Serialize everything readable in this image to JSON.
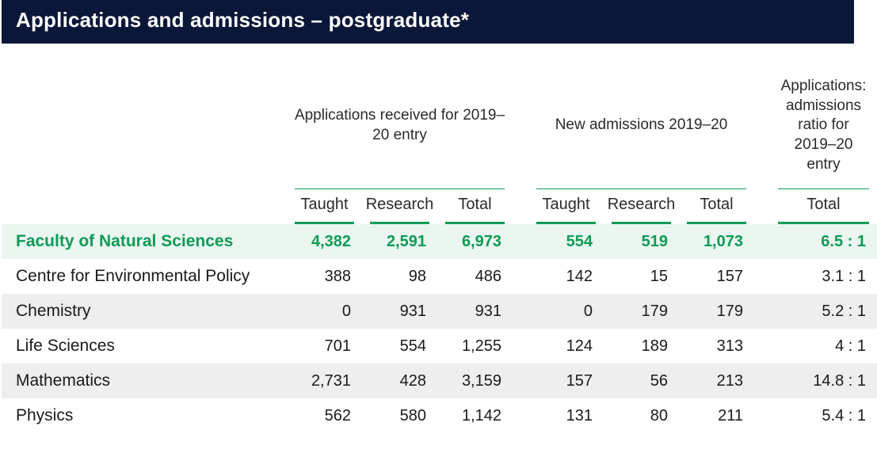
{
  "title": "Applications and admissions – postgraduate*",
  "group_headers": {
    "apps": "Applications received for  2019–20 entry",
    "admissions": "New admissions 2019–20",
    "ratio": "Applications: admissions ratio for 2019–20 entry"
  },
  "sub_headers": {
    "taught": "Taught",
    "research": "Research",
    "total": "Total"
  },
  "rows": [
    {
      "label": "Faculty of Natural Sciences",
      "a_t": "4,382",
      "a_r": "2,591",
      "a_tot": "6,973",
      "n_t": "554",
      "n_r": "519",
      "n_tot": "1,073",
      "ratio": "6.5 : 1",
      "faculty": true
    },
    {
      "label": "Centre for Environmental Policy",
      "a_t": "388",
      "a_r": "98",
      "a_tot": "486",
      "n_t": "142",
      "n_r": "15",
      "n_tot": "157",
      "ratio": "3.1 : 1"
    },
    {
      "label": "Chemistry",
      "a_t": "0",
      "a_r": "931",
      "a_tot": "931",
      "n_t": "0",
      "n_r": "179",
      "n_tot": "179",
      "ratio": "5.2 : 1",
      "alt": true
    },
    {
      "label": "Life Sciences",
      "a_t": "701",
      "a_r": "554",
      "a_tot": "1,255",
      "n_t": "124",
      "n_r": "189",
      "n_tot": "313",
      "ratio": "4 : 1"
    },
    {
      "label": "Mathematics",
      "a_t": "2,731",
      "a_r": "428",
      "a_tot": "3,159",
      "n_t": "157",
      "n_r": "56",
      "n_tot": "213",
      "ratio": "14.8 : 1",
      "alt": true
    },
    {
      "label": "Physics",
      "a_t": "562",
      "a_r": "580",
      "a_tot": "1,142",
      "n_t": "131",
      "n_r": "80",
      "n_tot": "211",
      "ratio": "5.4 : 1"
    }
  ],
  "styling": {
    "title_bg": "#0b1738",
    "title_color": "#ffffff",
    "rule_color": "#109a58",
    "faculty_bg": "#eaf6ef",
    "faculty_color": "#109a58",
    "alt_row_bg": "#eeeeee",
    "text_color": "#1a1a1a",
    "title_fontsize": 26,
    "header_fontsize": 19,
    "cell_fontsize": 20
  }
}
